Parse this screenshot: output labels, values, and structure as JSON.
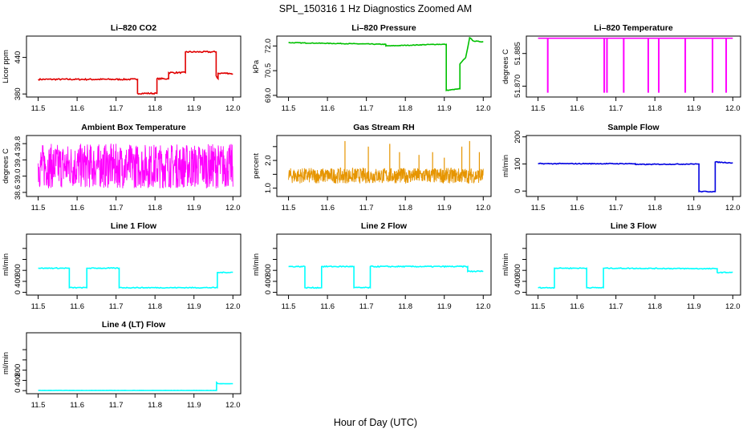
{
  "figure": {
    "title": "SPL_150316  1 Hz Diagnostics Zoomed AM",
    "xlabel": "Hour of Day (UTC)"
  },
  "colors": {
    "red": "#e00000",
    "green": "#00c000",
    "magenta": "#ff00ff",
    "orange": "#e69500",
    "blue": "#0000e0",
    "cyan": "#00ffff",
    "frame": "#000000"
  },
  "chart_data": [
    {
      "type": "line",
      "title": "Li–820 CO2",
      "ylabel": "Licor ppm",
      "color": "red",
      "xlim": [
        11.47,
        12.02
      ],
      "ylim": [
        375,
        475
      ],
      "xticks": [
        11.5,
        11.6,
        11.7,
        11.8,
        11.9,
        12.0
      ],
      "yticks": [
        380,
        440
      ],
      "ytick_labels": [
        "380",
        "440"
      ],
      "noise": 1.2,
      "series": [
        {
          "x": [
            11.5,
            11.755,
            11.755,
            11.805,
            11.805,
            11.835,
            11.835,
            11.878,
            11.878,
            11.957,
            11.957,
            11.962,
            11.962,
            11.99,
            12.0
          ],
          "y": [
            404,
            404,
            381,
            381,
            405,
            405,
            415,
            415,
            449,
            449,
            410,
            405,
            414,
            414,
            413
          ]
        }
      ]
    },
    {
      "type": "line",
      "title": "Li–820 Pressure",
      "ylabel": "kPa",
      "color": "green",
      "xlim": [
        11.47,
        12.02
      ],
      "ylim": [
        68.9,
        72.6
      ],
      "xticks": [
        11.5,
        11.6,
        11.7,
        11.8,
        11.9,
        12.0
      ],
      "yticks": [
        69.0,
        70.5,
        72.0
      ],
      "ytick_labels": [
        "69.0",
        "70.5",
        "72.0"
      ],
      "noise": 0.02,
      "series": [
        {
          "x": [
            11.5,
            11.75,
            11.75,
            11.88,
            11.905,
            11.905,
            11.94,
            11.94,
            11.955,
            11.965,
            11.975,
            12.0
          ],
          "y": [
            72.2,
            72.1,
            72.0,
            72.1,
            72.1,
            69.3,
            69.4,
            70.9,
            71.3,
            72.5,
            72.3,
            72.25
          ]
        }
      ]
    },
    {
      "type": "line",
      "title": "Li–820 Temperature",
      "ylabel": "degrees C",
      "color": "magenta",
      "xlim": [
        11.47,
        12.02
      ],
      "ylim": [
        51.865,
        51.893
      ],
      "xticks": [
        11.5,
        11.6,
        11.7,
        11.8,
        11.9,
        12.0
      ],
      "yticks": [
        51.87,
        51.885
      ],
      "ytick_labels": [
        "51.870",
        "51.885"
      ],
      "noise": 0,
      "base": 51.892,
      "low": 51.867,
      "spikes_x": [
        11.525,
        11.67,
        11.677,
        11.72,
        11.783,
        11.81,
        11.878,
        11.948,
        11.983
      ],
      "series": [
        {
          "x": [
            11.5,
            12.0
          ],
          "y": [
            51.892,
            51.892
          ]
        }
      ]
    },
    {
      "type": "noise",
      "title": "Ambient Box Temperature",
      "ylabel": "degrees C",
      "color": "magenta",
      "xlim": [
        11.47,
        12.02
      ],
      "ylim": [
        38.5,
        40.0
      ],
      "xticks": [
        11.5,
        11.6,
        11.7,
        11.8,
        11.9,
        12.0
      ],
      "yticks": [
        38.6,
        39.0,
        39.4,
        39.8
      ],
      "ytick_labels": [
        "38.6",
        "39.0",
        "39.4",
        "39.8"
      ],
      "mean": 39.25,
      "spread": 0.55,
      "x_range": [
        11.5,
        12.0
      ]
    },
    {
      "type": "noise",
      "title": "Gas Stream RH",
      "ylabel": "percent",
      "color": "orange",
      "xlim": [
        11.47,
        12.02
      ],
      "ylim": [
        0.7,
        2.9
      ],
      "xticks": [
        11.5,
        11.6,
        11.7,
        11.8,
        11.9,
        12.0
      ],
      "yticks": [
        1.0,
        1.5,
        2.0,
        2.5
      ],
      "ytick_labels": [
        "1.0",
        "",
        "2.0",
        ""
      ],
      "mean": 1.45,
      "spread": 0.28,
      "x_range": [
        11.5,
        12.0
      ],
      "peaks_x": [
        11.645,
        11.705,
        11.76,
        11.785,
        11.835,
        11.87,
        11.9,
        11.945,
        11.965,
        11.99
      ],
      "peaks_y": [
        2.7,
        2.5,
        2.6,
        2.3,
        2.2,
        2.3,
        2.1,
        2.5,
        2.7,
        2.3
      ]
    },
    {
      "type": "line",
      "title": "Sample Flow",
      "ylabel": "ml/min",
      "color": "blue",
      "xlim": [
        11.47,
        12.02
      ],
      "ylim": [
        -20,
        205
      ],
      "xticks": [
        11.5,
        11.6,
        11.7,
        11.8,
        11.9,
        12.0
      ],
      "yticks": [
        0,
        100,
        200
      ],
      "ytick_labels": [
        "0",
        "100",
        "200"
      ],
      "noise": 1.5,
      "series": [
        {
          "x": [
            11.5,
            11.75,
            11.75,
            11.91,
            11.913,
            11.913,
            11.955,
            11.955,
            12.0
          ],
          "y": [
            101,
            101,
            98,
            100,
            100,
            -2,
            -2,
            107,
            104
          ]
        }
      ]
    },
    {
      "type": "line",
      "title": "Line 1 Flow",
      "ylabel": "ml/min",
      "color": "cyan",
      "xlim": [
        11.47,
        12.02
      ],
      "ylim": [
        -50,
        1060
      ],
      "xticks": [
        11.5,
        11.6,
        11.7,
        11.8,
        11.9,
        12.0
      ],
      "yticks": [
        0,
        200,
        400,
        600,
        800
      ],
      "ytick_labels": [
        "0",
        "400",
        "800"
      ],
      "noise": 8,
      "series": [
        {
          "x": [
            11.5,
            11.58,
            11.58,
            11.625,
            11.625,
            11.708,
            11.708,
            11.96,
            11.96,
            12.0
          ],
          "y": [
            440,
            440,
            85,
            85,
            440,
            440,
            85,
            85,
            360,
            365
          ]
        }
      ]
    },
    {
      "type": "line",
      "title": "Line 2 Flow",
      "ylabel": "ml/min",
      "color": "cyan",
      "xlim": [
        11.47,
        12.02
      ],
      "ylim": [
        -50,
        1060
      ],
      "xticks": [
        11.5,
        11.6,
        11.7,
        11.8,
        11.9,
        12.0
      ],
      "yticks": [
        0,
        200,
        400,
        600,
        800
      ],
      "ytick_labels": [
        "0",
        "400",
        "800"
      ],
      "noise": 10,
      "series": [
        {
          "x": [
            11.5,
            11.542,
            11.542,
            11.585,
            11.585,
            11.668,
            11.668,
            11.71,
            11.71,
            11.96,
            11.96,
            12.0
          ],
          "y": [
            470,
            470,
            85,
            85,
            470,
            470,
            85,
            85,
            470,
            470,
            380,
            385
          ]
        }
      ]
    },
    {
      "type": "line",
      "title": "Line 3 Flow",
      "ylabel": "ml/min",
      "color": "cyan",
      "xlim": [
        11.47,
        12.02
      ],
      "ylim": [
        -50,
        1060
      ],
      "xticks": [
        11.5,
        11.6,
        11.7,
        11.8,
        11.9,
        12.0
      ],
      "yticks": [
        0,
        200,
        400,
        600,
        800
      ],
      "ytick_labels": [
        "0",
        "400",
        "800"
      ],
      "noise": 8,
      "series": [
        {
          "x": [
            11.5,
            11.542,
            11.542,
            11.625,
            11.625,
            11.668,
            11.668,
            11.96,
            11.96,
            12.0
          ],
          "y": [
            85,
            85,
            440,
            440,
            85,
            85,
            440,
            430,
            360,
            365
          ]
        }
      ]
    },
    {
      "type": "line",
      "title": "Line 4 (LT) Flow",
      "ylabel": "ml/min",
      "color": "cyan",
      "xlim": [
        11.47,
        12.02
      ],
      "ylim": [
        -60,
        1130
      ],
      "xticks": [
        11.5,
        11.6,
        11.7,
        11.8,
        11.9,
        12.0
      ],
      "yticks": [
        0,
        200,
        400,
        600,
        800
      ],
      "ytick_labels": [
        "0",
        "400",
        "800"
      ],
      "noise": 2,
      "series": [
        {
          "x": [
            11.5,
            11.958,
            11.958,
            11.962,
            12.0
          ],
          "y": [
            4,
            4,
            160,
            135,
            135
          ]
        }
      ]
    }
  ]
}
